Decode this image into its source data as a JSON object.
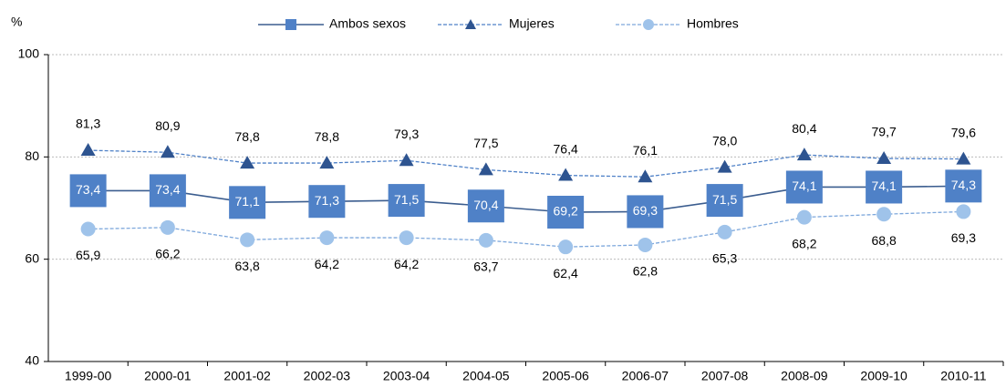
{
  "chart_data": {
    "type": "line",
    "y_label": "%",
    "categories": [
      "1999-00",
      "2000-01",
      "2001-02",
      "2002-03",
      "2003-04",
      "2004-05",
      "2005-06",
      "2006-07",
      "2007-08",
      "2008-09",
      "2009-10",
      "2010-11"
    ],
    "series": [
      {
        "name": "Ambos sexos",
        "color": "#4f81c7",
        "line_color": "#3b5d8f",
        "marker": "square",
        "dashed": false,
        "label_position": "center",
        "values": [
          73.4,
          73.4,
          71.1,
          71.3,
          71.5,
          70.4,
          69.2,
          69.3,
          71.5,
          74.1,
          74.1,
          74.3
        ],
        "value_labels": [
          "73,4",
          "73,4",
          "71,1",
          "71,3",
          "71,5",
          "70,4",
          "69,2",
          "69,3",
          "71,5",
          "74,1",
          "74,1",
          "74,3"
        ]
      },
      {
        "name": "Mujeres",
        "color": "#2e5490",
        "line_color": "#4f81c7",
        "marker": "triangle",
        "dashed": true,
        "label_position": "above",
        "values": [
          81.3,
          80.9,
          78.8,
          78.8,
          79.3,
          77.5,
          76.4,
          76.1,
          78.0,
          80.4,
          79.7,
          79.6
        ],
        "value_labels": [
          "81,3",
          "80,9",
          "78,8",
          "78,8",
          "79,3",
          "77,5",
          "76,4",
          "76,1",
          "78,0",
          "80,4",
          "79,7",
          "79,6"
        ]
      },
      {
        "name": "Hombres",
        "color": "#9fc3ea",
        "line_color": "#7ea8dc",
        "marker": "circle",
        "dashed": true,
        "label_position": "below",
        "values": [
          65.9,
          66.2,
          63.8,
          64.2,
          64.2,
          63.7,
          62.4,
          62.8,
          65.3,
          68.2,
          68.8,
          69.3
        ],
        "value_labels": [
          "65,9",
          "66,2",
          "63,8",
          "64,2",
          "64,2",
          "63,7",
          "62,4",
          "62,8",
          "65,3",
          "68,2",
          "68,8",
          "69,3"
        ]
      }
    ],
    "ylim": [
      40,
      100
    ],
    "yticks": [
      40,
      60,
      80,
      100
    ],
    "grid": true
  }
}
